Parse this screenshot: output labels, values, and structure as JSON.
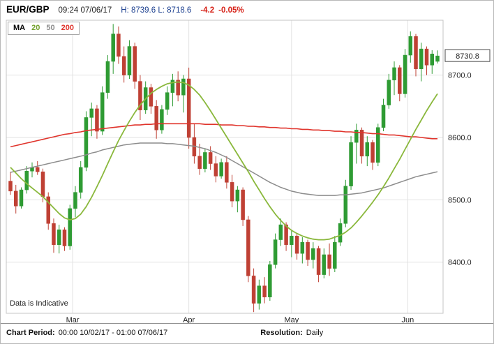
{
  "header": {
    "symbol": "EUR/GBP",
    "timestamp": "09:24 07/06/17",
    "high_label": "H:",
    "high_value": "8739.6",
    "low_label": "L:",
    "low_value": "8718.6",
    "change_value": "-4.2",
    "change_percent": "-0.05%"
  },
  "legend": {
    "title": "MA",
    "items": [
      {
        "label": "20",
        "color": "#8ab83c"
      },
      {
        "label": "50",
        "color": "#8c8c8c"
      },
      {
        "label": "200",
        "color": "#e0342c"
      }
    ]
  },
  "watermark": "Data is Indicative",
  "footer": {
    "period_label": "Chart Period:",
    "period_value": "00:00 10/02/17 - 01:00 07/06/17",
    "resolution_label": "Resolution:",
    "resolution_value": "Daily"
  },
  "chart_data": {
    "type": "candlestick",
    "title": "EUR/GBP Daily",
    "axis": {
      "top": 8788,
      "bottom": 8318
    },
    "y_ticks": [
      8700,
      8600,
      8500,
      8400
    ],
    "x_ticks": [
      {
        "label": "Mar",
        "index": 11.5
      },
      {
        "label": "Apr",
        "index": 33
      },
      {
        "label": "May",
        "index": 52
      },
      {
        "label": "Jun",
        "index": 73.5
      }
    ],
    "last_price": 8730.8,
    "last_price_label": "8730.8",
    "colors": {
      "up": "#2e9b33",
      "down": "#bf4034",
      "grid": "#e2e2e2",
      "frame": "#c4c4c4"
    },
    "candles": [
      [
        8530,
        8545,
        8508,
        8514
      ],
      [
        8514,
        8524,
        8478,
        8490
      ],
      [
        8490,
        8520,
        8486,
        8516
      ],
      [
        8516,
        8554,
        8510,
        8546
      ],
      [
        8546,
        8560,
        8536,
        8552
      ],
      [
        8552,
        8562,
        8540,
        8545
      ],
      [
        8545,
        8550,
        8496,
        8505
      ],
      [
        8505,
        8512,
        8452,
        8462
      ],
      [
        8462,
        8470,
        8415,
        8428
      ],
      [
        8428,
        8460,
        8414,
        8452
      ],
      [
        8452,
        8456,
        8418,
        8426
      ],
      [
        8426,
        8492,
        8420,
        8486
      ],
      [
        8486,
        8522,
        8472,
        8512
      ],
      [
        8512,
        8562,
        8502,
        8552
      ],
      [
        8552,
        8642,
        8546,
        8632
      ],
      [
        8632,
        8656,
        8602,
        8646
      ],
      [
        8646,
        8652,
        8598,
        8610
      ],
      [
        8610,
        8682,
        8604,
        8672
      ],
      [
        8672,
        8732,
        8662,
        8722
      ],
      [
        8722,
        8782,
        8702,
        8766
      ],
      [
        8766,
        8778,
        8718,
        8730
      ],
      [
        8730,
        8746,
        8688,
        8700
      ],
      [
        8700,
        8756,
        8694,
        8746
      ],
      [
        8746,
        8752,
        8678,
        8690
      ],
      [
        8690,
        8700,
        8628,
        8644
      ],
      [
        8644,
        8690,
        8638,
        8680
      ],
      [
        8680,
        8686,
        8638,
        8650
      ],
      [
        8650,
        8660,
        8598,
        8612
      ],
      [
        8612,
        8652,
        8606,
        8645
      ],
      [
        8645,
        8682,
        8636,
        8672
      ],
      [
        8672,
        8702,
        8650,
        8692
      ],
      [
        8692,
        8706,
        8658,
        8668
      ],
      [
        8668,
        8700,
        8640,
        8694
      ],
      [
        8694,
        8712,
        8582,
        8600
      ],
      [
        8600,
        8622,
        8558,
        8570
      ],
      [
        8570,
        8590,
        8540,
        8550
      ],
      [
        8550,
        8582,
        8544,
        8576
      ],
      [
        8576,
        8586,
        8548,
        8558
      ],
      [
        8558,
        8570,
        8528,
        8538
      ],
      [
        8538,
        8566,
        8534,
        8560
      ],
      [
        8560,
        8570,
        8518,
        8528
      ],
      [
        8528,
        8540,
        8488,
        8498
      ],
      [
        8498,
        8522,
        8480,
        8516
      ],
      [
        8516,
        8520,
        8458,
        8468
      ],
      [
        8468,
        8474,
        8368,
        8378
      ],
      [
        8378,
        8390,
        8320,
        8334
      ],
      [
        8334,
        8372,
        8324,
        8362
      ],
      [
        8362,
        8376,
        8334,
        8344
      ],
      [
        8344,
        8402,
        8338,
        8396
      ],
      [
        8396,
        8446,
        8390,
        8436
      ],
      [
        8436,
        8470,
        8426,
        8460
      ],
      [
        8460,
        8464,
        8418,
        8428
      ],
      [
        8428,
        8452,
        8408,
        8442
      ],
      [
        8442,
        8446,
        8404,
        8414
      ],
      [
        8414,
        8440,
        8398,
        8432
      ],
      [
        8432,
        8436,
        8394,
        8404
      ],
      [
        8404,
        8432,
        8390,
        8422
      ],
      [
        8422,
        8426,
        8368,
        8380
      ],
      [
        8380,
        8422,
        8374,
        8412
      ],
      [
        8412,
        8430,
        8378,
        8390
      ],
      [
        8390,
        8442,
        8384,
        8432
      ],
      [
        8432,
        8470,
        8426,
        8462
      ],
      [
        8462,
        8532,
        8456,
        8522
      ],
      [
        8522,
        8602,
        8516,
        8592
      ],
      [
        8592,
        8622,
        8558,
        8612
      ],
      [
        8612,
        8616,
        8558,
        8570
      ],
      [
        8570,
        8602,
        8554,
        8592
      ],
      [
        8592,
        8596,
        8548,
        8560
      ],
      [
        8560,
        8622,
        8554,
        8616
      ],
      [
        8616,
        8662,
        8610,
        8652
      ],
      [
        8652,
        8702,
        8646,
        8692
      ],
      [
        8692,
        8722,
        8668,
        8712
      ],
      [
        8712,
        8716,
        8658,
        8670
      ],
      [
        8670,
        8742,
        8664,
        8732
      ],
      [
        8732,
        8770,
        8720,
        8762
      ],
      [
        8762,
        8766,
        8698,
        8710
      ],
      [
        8710,
        8752,
        8690,
        8742
      ],
      [
        8742,
        8746,
        8700,
        8716
      ],
      [
        8716,
        8740,
        8702,
        8734
      ],
      [
        8722,
        8739.6,
        8718.6,
        8730.8
      ]
    ],
    "series": [
      {
        "name": "MA50",
        "color": "#8c8c8c",
        "width": 1.5,
        "values": [
          8544,
          8546,
          8548,
          8550,
          8552,
          8554,
          8556,
          8558,
          8560,
          8562,
          8564,
          8566,
          8568,
          8570,
          8572,
          8575,
          8577,
          8580,
          8582,
          8584,
          8586,
          8588,
          8589,
          8590,
          8591,
          8591,
          8591,
          8591,
          8591,
          8590,
          8590,
          8589,
          8588,
          8587,
          8586,
          8584,
          8582,
          8579,
          8576,
          8572,
          8568,
          8563,
          8558,
          8553,
          8548,
          8543,
          8538,
          8533,
          8528,
          8524,
          8520,
          8517,
          8514,
          8512,
          8510,
          8509,
          8508,
          8507,
          8507,
          8507,
          8507,
          8508,
          8508,
          8509,
          8510,
          8511,
          8513,
          8515,
          8517,
          8519,
          8522,
          8525,
          8528,
          8531,
          8534,
          8537,
          8539,
          8541,
          8543,
          8545
        ]
      },
      {
        "name": "MA200",
        "color": "#e0342c",
        "width": 1.6,
        "values": [
          8585,
          8587,
          8589,
          8591,
          8593,
          8595,
          8597,
          8599,
          8601,
          8603,
          8605,
          8606,
          8608,
          8609,
          8611,
          8612,
          8613,
          8614,
          8615,
          8616,
          8617,
          8618,
          8619,
          8620,
          8620,
          8621,
          8621,
          8622,
          8622,
          8622,
          8622,
          8622,
          8622,
          8622,
          8622,
          8622,
          8621,
          8621,
          8621,
          8620,
          8620,
          8620,
          8619,
          8619,
          8618,
          8618,
          8617,
          8617,
          8616,
          8616,
          8615,
          8615,
          8614,
          8614,
          8613,
          8613,
          8612,
          8612,
          8611,
          8611,
          8610,
          8610,
          8609,
          8609,
          8608,
          8608,
          8607,
          8606,
          8606,
          8605,
          8604,
          8604,
          8603,
          8602,
          8601,
          8601,
          8600,
          8599,
          8598,
          8598
        ]
      },
      {
        "name": "MA20",
        "color": "#8ab83c",
        "width": 1.8,
        "values": [
          8552,
          8543,
          8534,
          8526,
          8519,
          8512,
          8505,
          8496,
          8487,
          8478,
          8471,
          8468,
          8470,
          8477,
          8489,
          8504,
          8521,
          8539,
          8558,
          8577,
          8595,
          8611,
          8626,
          8640,
          8652,
          8662,
          8671,
          8677,
          8682,
          8686,
          8688,
          8689,
          8688,
          8684,
          8677,
          8668,
          8656,
          8643,
          8629,
          8615,
          8601,
          8587,
          8573,
          8559,
          8545,
          8530,
          8516,
          8502,
          8489,
          8477,
          8467,
          8458,
          8451,
          8446,
          8442,
          8439,
          8437,
          8436,
          8436,
          8437,
          8440,
          8443,
          8448,
          8455,
          8464,
          8474,
          8485,
          8496,
          8508,
          8521,
          8535,
          8550,
          8565,
          8581,
          8597,
          8613,
          8628,
          8643,
          8657,
          8670
        ]
      }
    ]
  }
}
